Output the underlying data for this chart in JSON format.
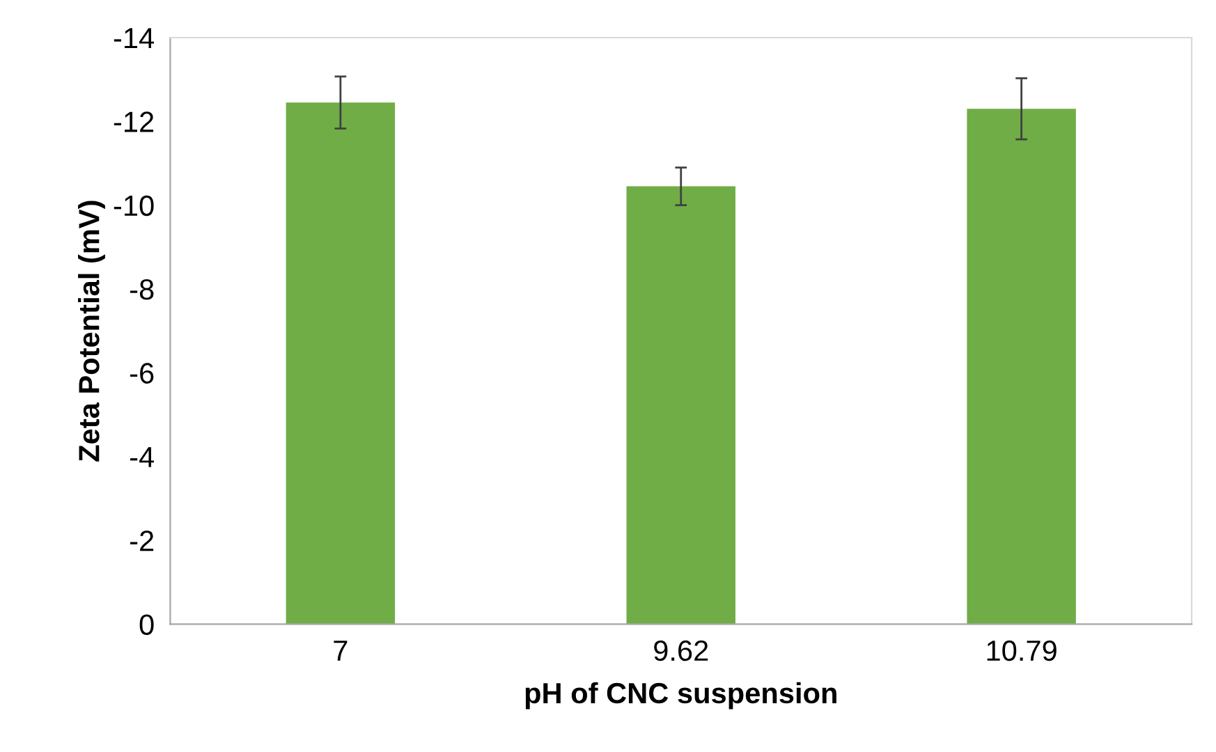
{
  "chart_data": {
    "type": "bar",
    "xlabel": "pH of CNC suspension",
    "ylabel": "Zeta Potential (mV)",
    "categories": [
      "7",
      "9.62",
      "10.79"
    ],
    "values": [
      -12.45,
      -10.45,
      -12.3
    ],
    "errors": [
      0.62,
      0.45,
      0.73
    ],
    "color": "#70ad47",
    "ylim": [
      0,
      -14
    ],
    "yticks": [
      0,
      -2,
      -4,
      -6,
      -8,
      -10,
      -12,
      -14
    ],
    "grid": false,
    "legend": false
  }
}
